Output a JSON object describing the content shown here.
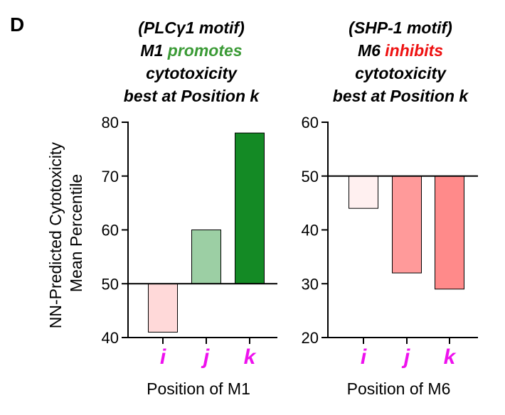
{
  "panel_label": "D",
  "y_axis_label_lines": [
    "NN-Predicted Cytotoxicity",
    "Mean Percentile"
  ],
  "accent_colors": {
    "promotes": "#3a9a35",
    "inhibits": "#ee1111",
    "category": "#ee11ee"
  },
  "chart_data": [
    {
      "type": "bar",
      "title_lines": [
        [
          {
            "text": "(PLCγ1 motif)",
            "color": "#000000"
          }
        ],
        [
          {
            "text": "M1 ",
            "color": "#000000"
          },
          {
            "text": "promotes",
            "color": "#3a9a35"
          }
        ],
        [
          {
            "text": "cytotoxicity",
            "color": "#000000"
          }
        ],
        [
          {
            "text": "best at Position k",
            "color": "#000000"
          }
        ]
      ],
      "categories": [
        "i",
        "j",
        "k"
      ],
      "values": [
        41,
        60,
        78
      ],
      "baseline": 50,
      "bar_colors": [
        "#ffd9d9",
        "#9ccfa4",
        "#148a25"
      ],
      "xlabel": "Position of M1",
      "ylim": [
        40,
        80
      ],
      "yticks": [
        40,
        50,
        60,
        70,
        80
      ]
    },
    {
      "type": "bar",
      "title_lines": [
        [
          {
            "text": "(SHP-1 motif)",
            "color": "#000000"
          }
        ],
        [
          {
            "text": "M6 ",
            "color": "#000000"
          },
          {
            "text": "inhibits",
            "color": "#ee1111"
          }
        ],
        [
          {
            "text": "cytotoxicity",
            "color": "#000000"
          }
        ],
        [
          {
            "text": "best at Position k",
            "color": "#000000"
          }
        ]
      ],
      "categories": [
        "i",
        "j",
        "k"
      ],
      "values": [
        44,
        32,
        29
      ],
      "baseline": 50,
      "bar_colors": [
        "#fff0f0",
        "#ff9a9a",
        "#ff8a8a"
      ],
      "xlabel": "Position of M6",
      "ylim": [
        20,
        60
      ],
      "yticks": [
        20,
        30,
        40,
        50,
        60
      ]
    }
  ]
}
